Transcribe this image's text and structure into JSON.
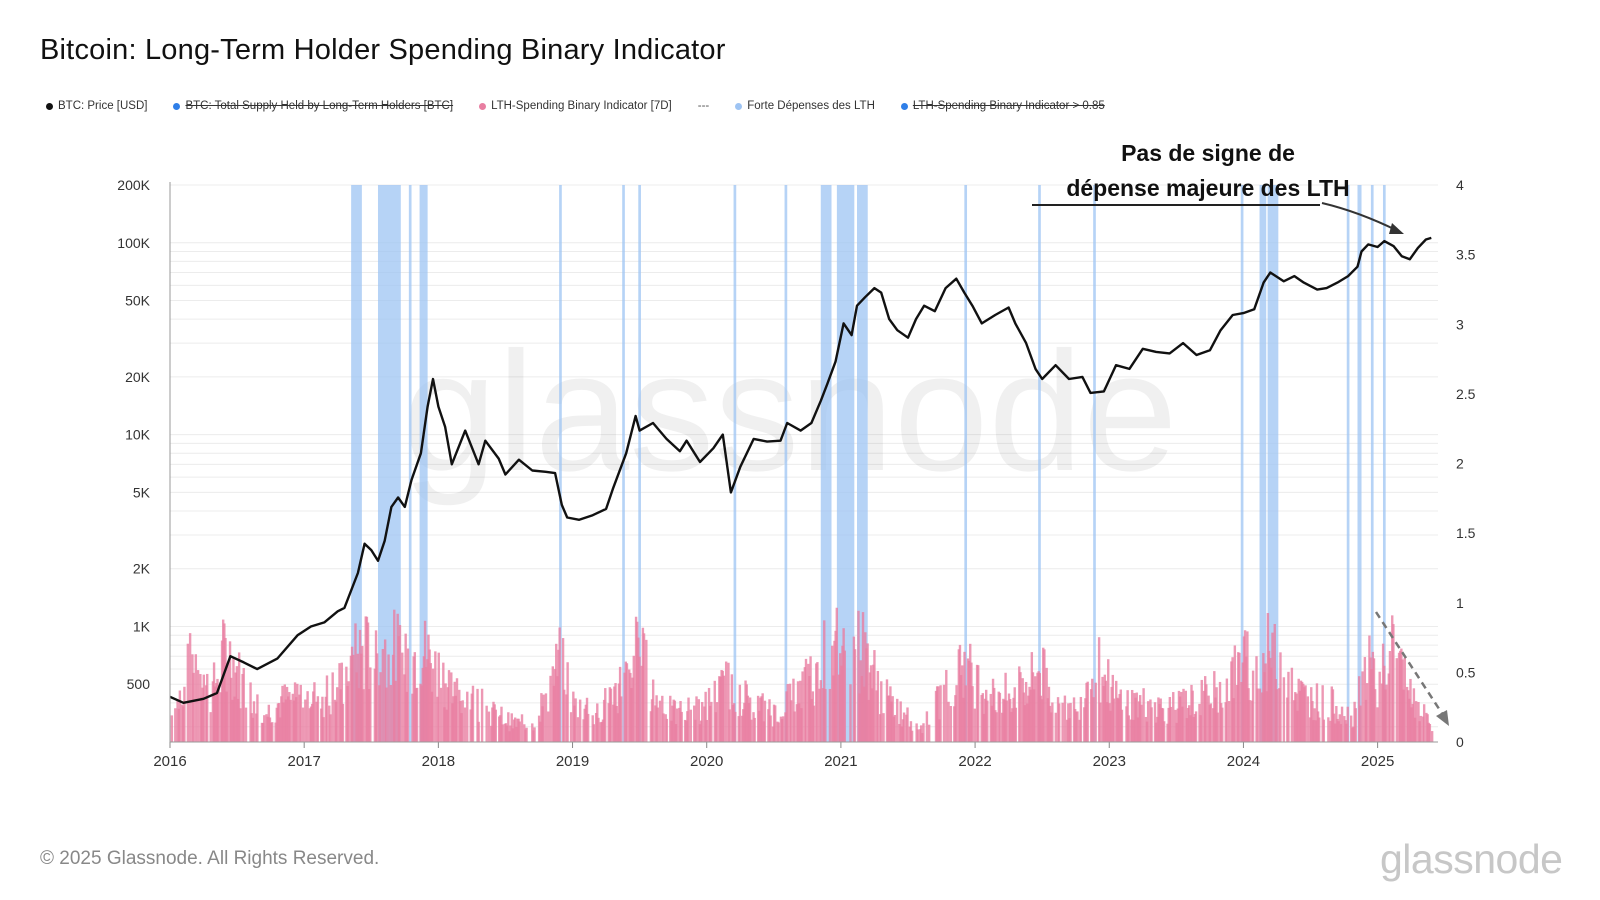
{
  "header": {
    "title": "Bitcoin: Long-Term Holder Spending Binary Indicator"
  },
  "legend": {
    "items": [
      {
        "label": "BTC: Price [USD]",
        "color": "#111111",
        "strikethrough": false
      },
      {
        "label": "BTC: Total Supply Held by Long-Term Holders [BTC]",
        "color": "#2f7fe8",
        "strikethrough": true
      },
      {
        "label": "LTH-Spending Binary Indicator [7D]",
        "color": "#e87ea1",
        "strikethrough": false
      },
      {
        "label": "Forte Dépenses des LTH",
        "color": "#9ec4f3",
        "strikethrough": false
      },
      {
        "label": "LTH-Spending Binary Indicator > 0.85",
        "color": "#2f7fe8",
        "strikethrough": true
      }
    ]
  },
  "annotation": {
    "line1": "Pas de signe de",
    "line2": "dépense majeure des LTH"
  },
  "footer": {
    "copyright": "© 2025 Glassnode. All Rights Reserved.",
    "logo_text": "glassnode"
  },
  "watermark": "glassnode",
  "chart_data": {
    "type": "line",
    "title": "Bitcoin: Long-Term Holder Spending Binary Indicator",
    "x_ticks": [
      "2016",
      "2017",
      "2018",
      "2019",
      "2020",
      "2021",
      "2022",
      "2023",
      "2024",
      "2025"
    ],
    "xlim": [
      2016.0,
      2025.45
    ],
    "y_left": {
      "scale": "log",
      "ticks": [
        500,
        1000,
        2000,
        5000,
        10000,
        20000,
        50000,
        100000,
        200000
      ],
      "tick_labels": [
        "500",
        "1K",
        "2K",
        "5K",
        "10K",
        "20K",
        "50K",
        "100K",
        "200K"
      ],
      "ylim": [
        250,
        200000
      ]
    },
    "y_right": {
      "scale": "linear",
      "ticks": [
        0,
        0.5,
        1,
        1.5,
        2,
        2.5,
        3,
        3.5,
        4
      ],
      "tick_labels": [
        "0",
        "0.5",
        "1",
        "1.5",
        "2",
        "2.5",
        "3",
        "3.5",
        "4"
      ],
      "ylim": [
        0,
        4
      ]
    },
    "grid": true,
    "series": [
      {
        "name": "BTC: Price [USD]",
        "axis": "left",
        "color": "#111111",
        "points": [
          [
            2016.0,
            430
          ],
          [
            2016.1,
            400
          ],
          [
            2016.25,
            420
          ],
          [
            2016.35,
            450
          ],
          [
            2016.45,
            700
          ],
          [
            2016.55,
            650
          ],
          [
            2016.65,
            600
          ],
          [
            2016.8,
            680
          ],
          [
            2016.95,
            900
          ],
          [
            2017.05,
            1000
          ],
          [
            2017.15,
            1050
          ],
          [
            2017.25,
            1200
          ],
          [
            2017.3,
            1250
          ],
          [
            2017.4,
            1900
          ],
          [
            2017.45,
            2700
          ],
          [
            2017.5,
            2500
          ],
          [
            2017.55,
            2200
          ],
          [
            2017.6,
            2800
          ],
          [
            2017.65,
            4200
          ],
          [
            2017.7,
            4700
          ],
          [
            2017.75,
            4200
          ],
          [
            2017.8,
            5800
          ],
          [
            2017.87,
            8000
          ],
          [
            2017.92,
            14000
          ],
          [
            2017.96,
            19500
          ],
          [
            2018.0,
            14000
          ],
          [
            2018.05,
            11000
          ],
          [
            2018.1,
            7000
          ],
          [
            2018.2,
            10500
          ],
          [
            2018.3,
            7000
          ],
          [
            2018.35,
            9300
          ],
          [
            2018.45,
            7500
          ],
          [
            2018.5,
            6200
          ],
          [
            2018.6,
            7400
          ],
          [
            2018.7,
            6500
          ],
          [
            2018.8,
            6400
          ],
          [
            2018.87,
            6300
          ],
          [
            2018.92,
            4300
          ],
          [
            2018.96,
            3700
          ],
          [
            2019.05,
            3600
          ],
          [
            2019.15,
            3800
          ],
          [
            2019.25,
            4100
          ],
          [
            2019.3,
            5200
          ],
          [
            2019.4,
            8000
          ],
          [
            2019.47,
            12500
          ],
          [
            2019.5,
            10500
          ],
          [
            2019.6,
            11500
          ],
          [
            2019.7,
            9500
          ],
          [
            2019.8,
            8200
          ],
          [
            2019.85,
            9300
          ],
          [
            2019.95,
            7200
          ],
          [
            2020.05,
            8500
          ],
          [
            2020.12,
            10000
          ],
          [
            2020.18,
            5000
          ],
          [
            2020.25,
            6800
          ],
          [
            2020.35,
            9500
          ],
          [
            2020.45,
            9200
          ],
          [
            2020.55,
            9300
          ],
          [
            2020.6,
            11500
          ],
          [
            2020.7,
            10500
          ],
          [
            2020.78,
            11500
          ],
          [
            2020.85,
            15000
          ],
          [
            2020.9,
            18500
          ],
          [
            2020.96,
            24000
          ],
          [
            2021.02,
            38000
          ],
          [
            2021.08,
            33000
          ],
          [
            2021.12,
            47000
          ],
          [
            2021.18,
            52000
          ],
          [
            2021.25,
            58000
          ],
          [
            2021.3,
            55000
          ],
          [
            2021.36,
            40000
          ],
          [
            2021.42,
            35000
          ],
          [
            2021.5,
            32000
          ],
          [
            2021.56,
            40000
          ],
          [
            2021.62,
            47000
          ],
          [
            2021.7,
            44000
          ],
          [
            2021.78,
            58000
          ],
          [
            2021.86,
            65000
          ],
          [
            2021.92,
            55000
          ],
          [
            2021.98,
            47000
          ],
          [
            2022.05,
            38000
          ],
          [
            2022.15,
            42000
          ],
          [
            2022.25,
            46000
          ],
          [
            2022.3,
            38000
          ],
          [
            2022.38,
            30000
          ],
          [
            2022.45,
            22000
          ],
          [
            2022.5,
            19500
          ],
          [
            2022.6,
            23000
          ],
          [
            2022.7,
            19500
          ],
          [
            2022.8,
            20000
          ],
          [
            2022.86,
            16500
          ],
          [
            2022.96,
            16800
          ],
          [
            2023.05,
            23000
          ],
          [
            2023.15,
            22000
          ],
          [
            2023.25,
            28000
          ],
          [
            2023.35,
            27000
          ],
          [
            2023.45,
            26500
          ],
          [
            2023.55,
            30000
          ],
          [
            2023.65,
            26000
          ],
          [
            2023.75,
            27500
          ],
          [
            2023.83,
            35000
          ],
          [
            2023.92,
            42000
          ],
          [
            2024.0,
            43000
          ],
          [
            2024.08,
            45000
          ],
          [
            2024.15,
            62000
          ],
          [
            2024.2,
            70000
          ],
          [
            2024.3,
            63000
          ],
          [
            2024.38,
            67000
          ],
          [
            2024.45,
            62000
          ],
          [
            2024.55,
            57000
          ],
          [
            2024.62,
            58000
          ],
          [
            2024.7,
            62000
          ],
          [
            2024.78,
            67000
          ],
          [
            2024.85,
            75000
          ],
          [
            2024.88,
            90000
          ],
          [
            2024.93,
            98000
          ],
          [
            2025.0,
            95000
          ],
          [
            2025.05,
            102000
          ],
          [
            2025.12,
            96000
          ],
          [
            2025.18,
            85000
          ],
          [
            2025.24,
            82000
          ],
          [
            2025.3,
            94000
          ],
          [
            2025.36,
            104000
          ],
          [
            2025.4,
            106000
          ]
        ]
      },
      {
        "name": "LTH-Spending Binary Indicator [7D]",
        "axis": "right",
        "color": "#e87ea1",
        "points": [
          [
            2016.0,
            0.25
          ],
          [
            2016.1,
            0.6
          ],
          [
            2016.18,
            1.0
          ],
          [
            2016.3,
            0.5
          ],
          [
            2016.41,
            1.0
          ],
          [
            2016.55,
            0.55
          ],
          [
            2016.7,
            0.3
          ],
          [
            2016.85,
            0.45
          ],
          [
            2017.0,
            0.55
          ],
          [
            2017.1,
            0.45
          ],
          [
            2017.25,
            0.6
          ],
          [
            2017.35,
            0.85
          ],
          [
            2017.45,
            0.95
          ],
          [
            2017.55,
            0.9
          ],
          [
            2017.65,
            1.0
          ],
          [
            2017.75,
            0.8
          ],
          [
            2017.85,
            1.0
          ],
          [
            2017.95,
            0.85
          ],
          [
            2018.1,
            0.55
          ],
          [
            2018.25,
            0.45
          ],
          [
            2018.4,
            0.3
          ],
          [
            2018.55,
            0.2
          ],
          [
            2018.7,
            0.2
          ],
          [
            2018.9,
            0.85
          ],
          [
            2019.0,
            0.4
          ],
          [
            2019.2,
            0.35
          ],
          [
            2019.38,
            0.65
          ],
          [
            2019.48,
            1.0
          ],
          [
            2019.6,
            0.5
          ],
          [
            2019.75,
            0.3
          ],
          [
            2019.95,
            0.35
          ],
          [
            2020.15,
            0.6
          ],
          [
            2020.3,
            0.45
          ],
          [
            2020.5,
            0.3
          ],
          [
            2020.65,
            0.5
          ],
          [
            2020.8,
            0.75
          ],
          [
            2020.92,
            1.0
          ],
          [
            2021.05,
            0.95
          ],
          [
            2021.15,
            1.0
          ],
          [
            2021.3,
            0.5
          ],
          [
            2021.45,
            0.3
          ],
          [
            2021.6,
            0.15
          ],
          [
            2021.75,
            0.5
          ],
          [
            2021.88,
            0.85
          ],
          [
            2022.0,
            0.65
          ],
          [
            2022.15,
            0.45
          ],
          [
            2022.35,
            0.6
          ],
          [
            2022.48,
            0.75
          ],
          [
            2022.6,
            0.4
          ],
          [
            2022.75,
            0.35
          ],
          [
            2022.88,
            0.85
          ],
          [
            2023.05,
            0.45
          ],
          [
            2023.25,
            0.4
          ],
          [
            2023.45,
            0.35
          ],
          [
            2023.65,
            0.45
          ],
          [
            2023.85,
            0.55
          ],
          [
            2023.98,
            0.85
          ],
          [
            2024.1,
            0.75
          ],
          [
            2024.2,
            1.0
          ],
          [
            2024.35,
            0.55
          ],
          [
            2024.5,
            0.45
          ],
          [
            2024.65,
            0.4
          ],
          [
            2024.8,
            0.25
          ],
          [
            2024.9,
            0.8
          ],
          [
            2025.0,
            0.7
          ],
          [
            2025.1,
            1.0
          ],
          [
            2025.2,
            0.6
          ],
          [
            2025.3,
            0.35
          ],
          [
            2025.4,
            0.15
          ]
        ]
      }
    ],
    "highlight_periods": {
      "name": "Forte Dépenses des LTH",
      "color": "#9ec4f3",
      "ranges": [
        [
          2017.35,
          2017.43
        ],
        [
          2017.55,
          2017.72
        ],
        [
          2017.78,
          2017.8
        ],
        [
          2017.86,
          2017.92
        ],
        [
          2018.9,
          2018.92
        ],
        [
          2019.37,
          2019.39
        ],
        [
          2019.49,
          2019.51
        ],
        [
          2020.2,
          2020.22
        ],
        [
          2020.58,
          2020.6
        ],
        [
          2020.85,
          2020.93
        ],
        [
          2020.97,
          2021.1
        ],
        [
          2021.12,
          2021.2
        ],
        [
          2021.92,
          2021.94
        ],
        [
          2022.47,
          2022.49
        ],
        [
          2022.88,
          2022.9
        ],
        [
          2023.98,
          2024.0
        ],
        [
          2024.12,
          2024.17
        ],
        [
          2024.18,
          2024.26
        ],
        [
          2024.77,
          2024.79
        ],
        [
          2024.85,
          2024.88
        ],
        [
          2024.95,
          2024.97
        ],
        [
          2025.04,
          2025.06
        ]
      ]
    }
  }
}
